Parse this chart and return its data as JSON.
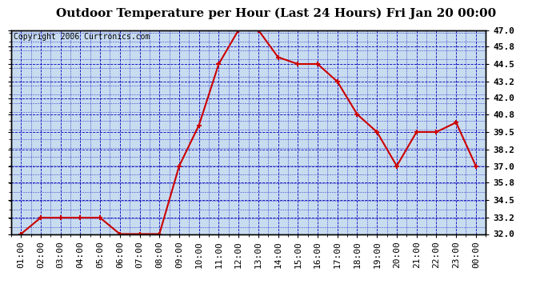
{
  "title": "Outdoor Temperature per Hour (Last 24 Hours) Fri Jan 20 00:00",
  "copyright": "Copyright 2006 Curtronics.com",
  "x_labels": [
    "01:00",
    "02:00",
    "03:00",
    "04:00",
    "05:00",
    "06:00",
    "07:00",
    "08:00",
    "09:00",
    "10:00",
    "11:00",
    "12:00",
    "13:00",
    "14:00",
    "15:00",
    "16:00",
    "17:00",
    "18:00",
    "19:00",
    "20:00",
    "21:00",
    "22:00",
    "23:00",
    "00:00"
  ],
  "temperatures": [
    32.0,
    33.2,
    33.2,
    33.2,
    33.2,
    32.0,
    32.0,
    32.0,
    37.0,
    40.0,
    44.5,
    47.0,
    47.0,
    45.0,
    44.5,
    44.5,
    43.2,
    40.8,
    39.5,
    37.0,
    39.5,
    39.5,
    40.2,
    37.0
  ],
  "y_ticks": [
    32.0,
    33.2,
    34.5,
    35.8,
    37.0,
    38.2,
    39.5,
    40.8,
    42.0,
    43.2,
    44.5,
    45.8,
    47.0
  ],
  "ylim": [
    32.0,
    47.0
  ],
  "line_color": "#cc0000",
  "marker_color": "#cc0000",
  "grid_color": "#0000bb",
  "plot_bg_color": "#c8dcf0",
  "title_fontsize": 11,
  "copyright_fontsize": 7,
  "tick_fontsize": 8,
  "border_color": "#000000"
}
